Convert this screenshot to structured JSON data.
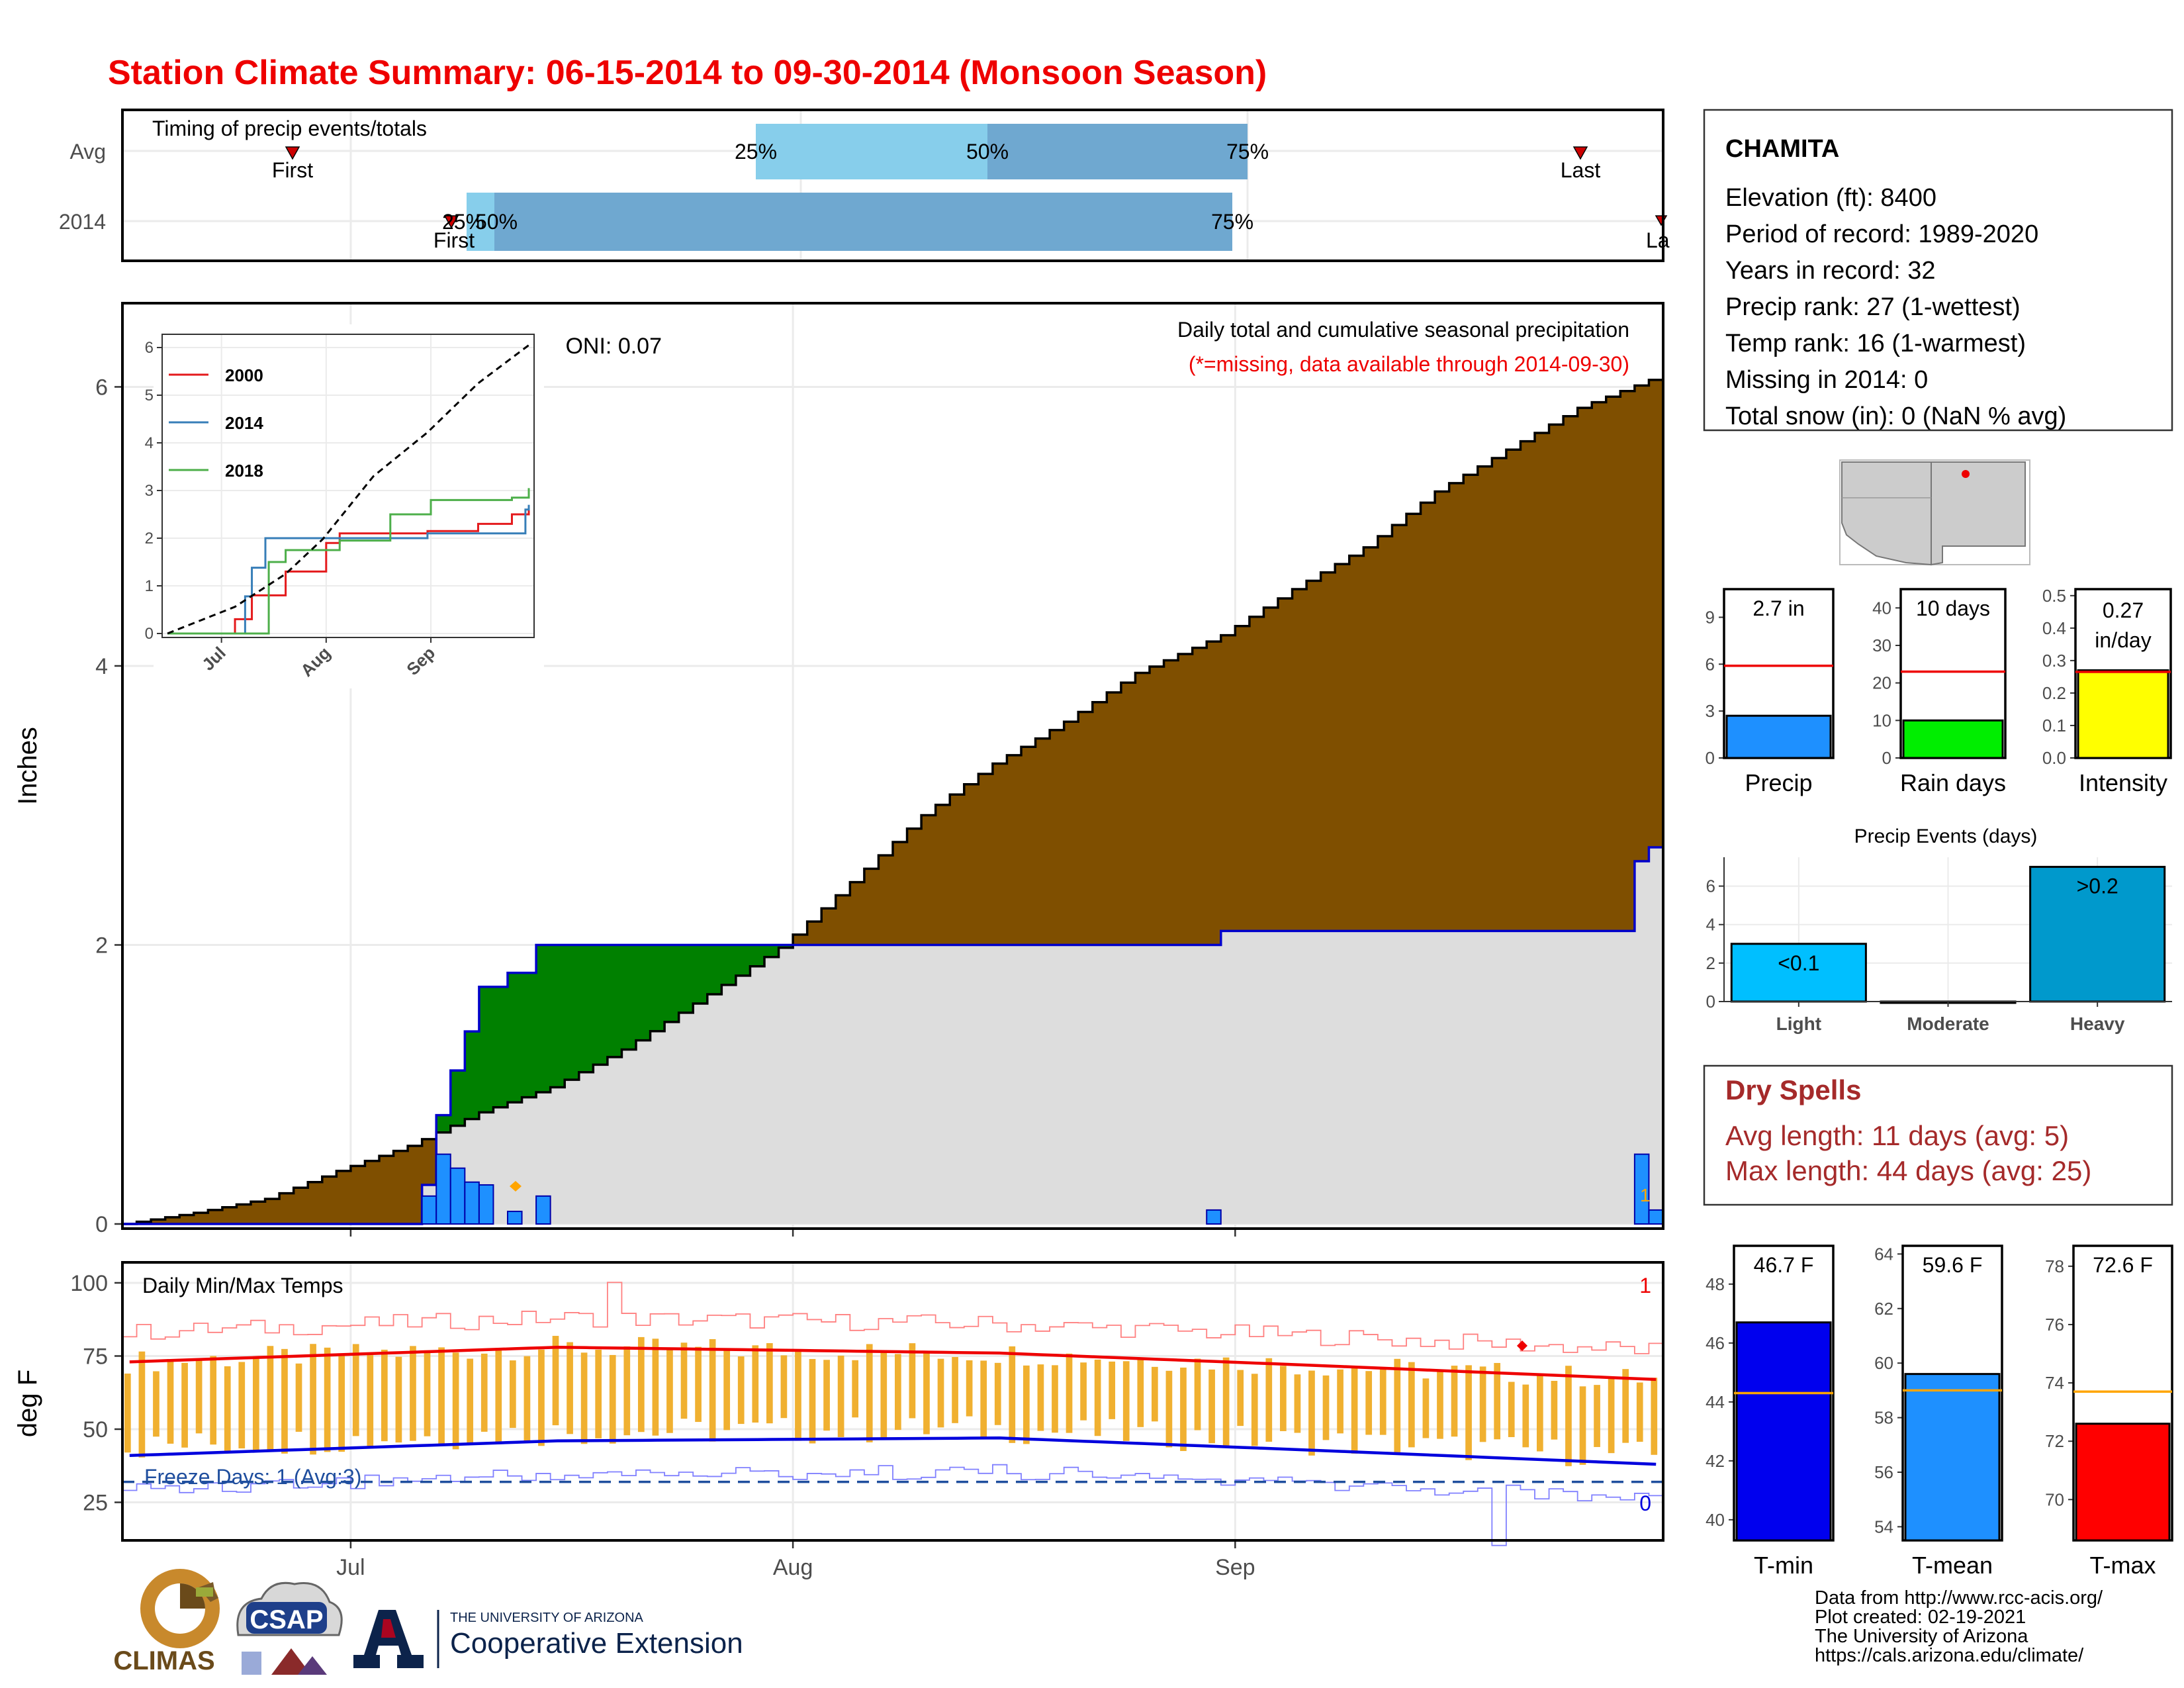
{
  "title": "Station Climate Summary: 06-15-2014 to 09-30-2014 (Monsoon Season)",
  "timing_panel": {
    "label": "Timing of precip events/totals",
    "rows": [
      "Avg",
      "2014"
    ],
    "avg": {
      "first": "First",
      "last": "Last",
      "p25": "25%",
      "p50": "50%",
      "p75": "75%"
    },
    "y2014": {
      "first": "First",
      "last": "La",
      "p25": "25%",
      "p50": "50%",
      "p75": "75%"
    }
  },
  "precip_panel": {
    "ylabel": "Inches",
    "oni": "ONI: 0.07",
    "subtitle": "Daily total and cumulative seasonal precipitation",
    "missing_note": "(*=missing, data available through 2014-09-30)",
    "marker_label": "1",
    "inset_legend": [
      "2000",
      "2014",
      "2018"
    ],
    "inset_x_ticks": [
      "Jul",
      "Aug",
      "Sep"
    ]
  },
  "temp_panel": {
    "ylabel": "deg F",
    "label": "Daily Min/Max Temps",
    "freeze": "Freeze Days: 1 (Avg:3)",
    "max_count": "1",
    "min_count": "0",
    "x_ticks": [
      "Jul",
      "Aug",
      "Sep"
    ]
  },
  "station": {
    "name": "CHAMITA",
    "lines": [
      "Elevation (ft): 8400",
      "Period of record: 1989-2020",
      "Years in record: 32",
      "Precip rank: 27 (1-wettest)",
      "Temp rank: 16 (1-warmest)",
      "Missing in 2014: 0",
      "Total snow (in): 0 (NaN % avg)"
    ]
  },
  "mini_bars": {
    "precip": {
      "label": "Precip",
      "value_text": "2.7 in"
    },
    "rain_days": {
      "label": "Rain days",
      "value_text": "10 days"
    },
    "intensity": {
      "label": "Intensity",
      "value_text": "0.27 in/day"
    }
  },
  "events": {
    "title": "Precip Events (days)",
    "categories": [
      "Light",
      "Moderate",
      "Heavy"
    ],
    "bar_labels": [
      "<0.1",
      "",
      ">0.2"
    ]
  },
  "dry_spells": {
    "title": "Dry Spells",
    "avg": "Avg length: 11 days (avg: 5)",
    "max": "Max length: 44 days (avg: 25)"
  },
  "temp_bars": {
    "tmin": {
      "label": "T-min",
      "value_text": "46.7 F"
    },
    "tmean": {
      "label": "T-mean",
      "value_text": "59.6 F"
    },
    "tmax": {
      "label": "T-max",
      "value_text": "72.6 F"
    }
  },
  "credits": [
    "Data from http://www.rcc-acis.org/",
    "Plot created: 02-19-2021",
    "The University of Arizona",
    "https://cals.arizona.edu/climate/"
  ],
  "logos": {
    "climas": "CLIMAS",
    "csap": "CSAP",
    "ua_small": "THE UNIVERSITY OF ARIZONA",
    "ua_big": "Cooperative Extension"
  },
  "colors": {
    "title": "#ee0000",
    "brown": "#7f4f00",
    "green": "#008000",
    "blue_bar": "#1e90ff",
    "gray_fill": "#dddddd",
    "dry_spell_text": "#a52a2a",
    "avg_light": "#87ceeb",
    "avg_dark": "#6fa8d0"
  },
  "chart_data": [
    {
      "type": "area",
      "name": "cumulative_precip",
      "ylabel": "Inches",
      "ylim": [
        0,
        6.6
      ],
      "x_ticks": [
        "Jul",
        "Aug",
        "Sep"
      ],
      "y_ticks": [
        0,
        2,
        4,
        6
      ],
      "avg_cumulative": {
        "x": [
          "2014-06-15",
          "2014-06-20",
          "2014-06-25",
          "2014-06-30",
          "2014-07-05",
          "2014-07-10",
          "2014-07-15",
          "2014-07-20",
          "2014-07-25",
          "2014-07-31",
          "2014-08-05",
          "2014-08-10",
          "2014-08-15",
          "2014-08-20",
          "2014-08-25",
          "2014-08-31",
          "2014-09-05",
          "2014-09-10",
          "2014-09-15",
          "2014-09-20",
          "2014-09-25",
          "2014-09-30"
        ],
        "y": [
          0.0,
          0.08,
          0.18,
          0.38,
          0.56,
          0.8,
          0.98,
          1.25,
          1.58,
          1.98,
          2.45,
          2.93,
          3.3,
          3.6,
          3.95,
          4.22,
          4.55,
          4.85,
          5.25,
          5.55,
          5.85,
          6.05
        ]
      },
      "y2014_cumulative": {
        "x": [
          "2014-06-15",
          "2014-07-05",
          "2014-07-06",
          "2014-07-07",
          "2014-07-08",
          "2014-07-09",
          "2014-07-10",
          "2014-07-12",
          "2014-07-14",
          "2014-08-31",
          "2014-09-29",
          "2014-09-30"
        ],
        "y": [
          0.0,
          0.0,
          0.28,
          0.78,
          1.1,
          1.38,
          1.7,
          1.8,
          2.0,
          2.1,
          2.6,
          2.7
        ]
      },
      "daily_precip": {
        "x": [
          "2014-07-06",
          "2014-07-07",
          "2014-07-08",
          "2014-07-09",
          "2014-07-10",
          "2014-07-12",
          "2014-07-14",
          "2014-08-30",
          "2014-09-29",
          "2014-09-30"
        ],
        "y": [
          0.2,
          0.5,
          0.4,
          0.3,
          0.28,
          0.09,
          0.2,
          0.1,
          0.5,
          0.1
        ]
      }
    },
    {
      "type": "line",
      "name": "inset_cumulative_years",
      "ylim": [
        0,
        6
      ],
      "y_ticks": [
        0,
        1,
        2,
        3,
        4,
        5,
        6
      ],
      "series": [
        {
          "name": "2000",
          "color": "#e41a1c",
          "x": [
            "2014-06-15",
            "2014-07-05",
            "2014-07-10",
            "2014-07-20",
            "2014-08-01",
            "2014-08-05",
            "2014-08-31",
            "2014-09-15",
            "2014-09-25",
            "2014-09-30"
          ],
          "y": [
            0.0,
            0.3,
            0.8,
            1.3,
            1.9,
            2.1,
            2.15,
            2.3,
            2.5,
            2.6
          ]
        },
        {
          "name": "2014",
          "color": "#377eb8",
          "x": [
            "2014-06-15",
            "2014-07-05",
            "2014-07-08",
            "2014-07-10",
            "2014-07-14",
            "2014-08-31",
            "2014-09-29",
            "2014-09-30"
          ],
          "y": [
            0.0,
            0.0,
            0.78,
            1.38,
            2.0,
            2.1,
            2.6,
            2.7
          ]
        },
        {
          "name": "2018",
          "color": "#4daf4a",
          "x": [
            "2014-06-15",
            "2014-07-14",
            "2014-07-15",
            "2014-07-20",
            "2014-08-05",
            "2014-08-20",
            "2014-09-01",
            "2014-09-25",
            "2014-09-30"
          ],
          "y": [
            0.0,
            0.0,
            1.5,
            1.75,
            1.95,
            2.5,
            2.8,
            2.85,
            3.05
          ]
        },
        {
          "name": "avg",
          "color": "#000000",
          "x": [
            "2014-06-15",
            "2014-07-05",
            "2014-07-20",
            "2014-07-31",
            "2014-08-15",
            "2014-08-31",
            "2014-09-15",
            "2014-09-30"
          ],
          "y": [
            0.0,
            0.56,
            1.25,
            1.98,
            3.3,
            4.22,
            5.25,
            6.05
          ]
        }
      ]
    },
    {
      "type": "line",
      "name": "daily_temps",
      "ylabel": "deg F",
      "ylim": [
        12,
        107
      ],
      "y_ticks": [
        25,
        50,
        75,
        100
      ],
      "avg_tmax": 76,
      "avg_tmin": 44,
      "freeze_line": 32,
      "record_high": 97,
      "record_low": 30,
      "series": [
        {
          "name": "tmax_avg",
          "x": [
            "2014-06-15",
            "2014-07-15",
            "2014-08-15",
            "2014-09-05",
            "2014-09-30"
          ],
          "y": [
            73,
            78,
            76,
            72,
            67
          ]
        },
        {
          "name": "tmin_avg",
          "x": [
            "2014-06-15",
            "2014-07-15",
            "2014-08-15",
            "2014-09-05",
            "2014-09-30"
          ],
          "y": [
            41,
            46,
            47,
            43,
            38
          ]
        }
      ]
    },
    {
      "type": "bar",
      "name": "season_totals",
      "categories": [
        "Precip",
        "Rain days",
        "Intensity"
      ],
      "values": [
        2.7,
        10,
        0.27
      ],
      "averages": [
        5.9,
        23,
        0.265
      ],
      "ylims": [
        [
          0,
          10.8
        ],
        [
          0,
          45
        ],
        [
          0,
          0.52
        ]
      ]
    },
    {
      "type": "bar",
      "name": "precip_events",
      "categories": [
        "Light",
        "Moderate",
        "Heavy"
      ],
      "values": [
        3,
        0,
        7
      ],
      "ylim": [
        0,
        7.5
      ]
    },
    {
      "type": "bar",
      "name": "temp_means",
      "categories": [
        "T-min",
        "T-mean",
        "T-max"
      ],
      "values": [
        46.7,
        59.6,
        72.6
      ],
      "averages": [
        44.3,
        59.0,
        73.7
      ],
      "ylims": [
        [
          39.3,
          49.3
        ],
        [
          53.5,
          64.3
        ],
        [
          68.6,
          78.7
        ]
      ]
    }
  ]
}
